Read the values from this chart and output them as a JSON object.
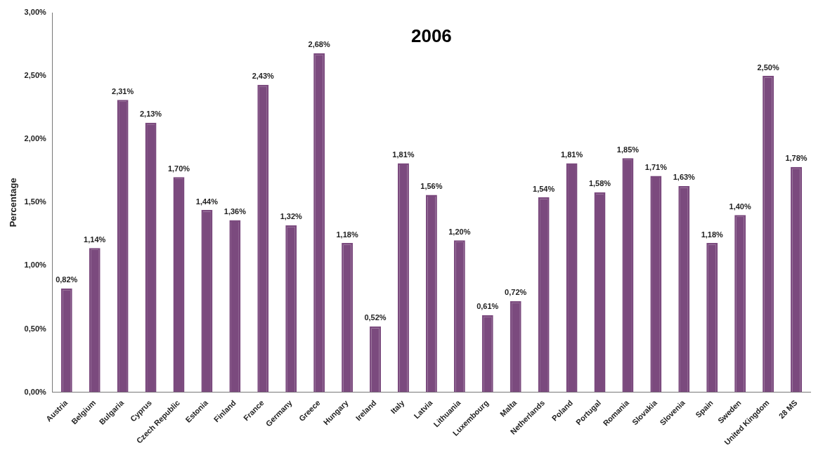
{
  "chart_data": {
    "type": "bar",
    "title": "2006",
    "ylabel": "Percentage",
    "categories": [
      "Austria",
      "Belgium",
      "Bulgaria",
      "Cyprus",
      "Czech Republic",
      "Estonia",
      "Finland",
      "France",
      "Germany",
      "Greece",
      "Hungary",
      "Ireland",
      "Italy",
      "Latvia",
      "Lithuania",
      "Luxembourg",
      "Malta",
      "Netherlands",
      "Poland",
      "Portugal",
      "Romania",
      "Slovakia",
      "Slovenia",
      "Spain",
      "Sweden",
      "United Kingdom",
      "28 MS"
    ],
    "values": [
      0.82,
      1.14,
      2.31,
      2.13,
      1.7,
      1.44,
      1.36,
      2.43,
      1.32,
      2.68,
      1.18,
      0.52,
      1.81,
      1.56,
      1.2,
      0.61,
      0.72,
      1.54,
      1.81,
      1.58,
      1.85,
      1.71,
      1.63,
      1.18,
      1.4,
      2.5,
      1.78
    ],
    "value_labels": [
      "0,82%",
      "1,14%",
      "2,31%",
      "2,13%",
      "1,70%",
      "1,44%",
      "1,36%",
      "2,43%",
      "1,32%",
      "2,68%",
      "1,18%",
      "0,52%",
      "1,81%",
      "1,56%",
      "1,20%",
      "0,61%",
      "0,72%",
      "1,54%",
      "1,81%",
      "1,58%",
      "1,85%",
      "1,71%",
      "1,63%",
      "1,18%",
      "1,40%",
      "2,50%",
      "1,78%"
    ],
    "color": "#7b4a7e",
    "ylim": [
      0,
      3
    ],
    "yticks": [
      {
        "value": 0,
        "label": "0,00%"
      },
      {
        "value": 0.5,
        "label": "0,50%"
      },
      {
        "value": 1,
        "label": "1,00%"
      },
      {
        "value": 1.5,
        "label": "1,50%"
      },
      {
        "value": 2,
        "label": "2,00%"
      },
      {
        "value": 2.5,
        "label": "2,50%"
      },
      {
        "value": 3,
        "label": "3,00%"
      }
    ],
    "grid": false,
    "legend": false
  }
}
